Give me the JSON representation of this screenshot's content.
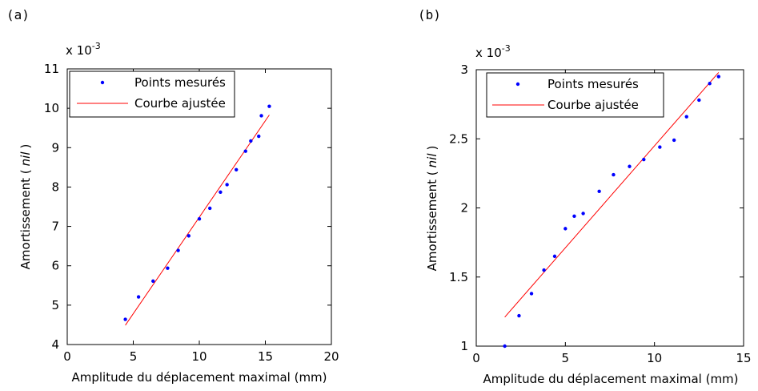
{
  "chart_data": [
    {
      "type": "scatter",
      "panel_label": "(a)",
      "multiplier": "x 10",
      "multiplier_exp": "-3",
      "xlabel": "Amplitude du déplacement maximal (mm)",
      "ylabel_prefix": "Amortissement (",
      "ylabel_italic": "nil",
      "ylabel_suffix": ")",
      "xlim": [
        0,
        20
      ],
      "ylim": [
        4,
        11
      ],
      "xticks": [
        0,
        5,
        10,
        15,
        20
      ],
      "yticks": [
        4,
        5,
        6,
        7,
        8,
        9,
        10,
        11
      ],
      "legend_position": "top-left",
      "series": [
        {
          "name": "Points mesurés",
          "kind": "points",
          "color": "#0000ff",
          "x": [
            4.4,
            5.4,
            6.5,
            7.6,
            8.4,
            9.2,
            10.0,
            10.8,
            11.6,
            12.1,
            12.8,
            13.5,
            13.9,
            14.5,
            14.7,
            15.3
          ],
          "y": [
            4.64,
            5.21,
            5.61,
            5.94,
            6.39,
            6.76,
            7.19,
            7.46,
            7.87,
            8.06,
            8.44,
            8.91,
            9.17,
            9.29,
            9.81,
            10.05
          ]
        },
        {
          "name": "Courbe ajustée",
          "kind": "line",
          "color": "#ff0000",
          "x": [
            4.4,
            15.3
          ],
          "y": [
            4.49,
            9.83
          ]
        }
      ]
    },
    {
      "type": "scatter",
      "panel_label": "(b)",
      "multiplier": "x 10",
      "multiplier_exp": "-3",
      "xlabel": "Amplitude du déplacement maximal (mm)",
      "ylabel_prefix": "Amortissement (",
      "ylabel_italic": "nil",
      "ylabel_suffix": ")",
      "xlim": [
        0,
        15
      ],
      "ylim": [
        1,
        3
      ],
      "xticks": [
        0,
        5,
        10,
        15
      ],
      "yticks": [
        1,
        1.5,
        2,
        2.5,
        3
      ],
      "legend_position": "top-left",
      "series": [
        {
          "name": "Points mesurés",
          "kind": "points",
          "color": "#0000ff",
          "x": [
            1.6,
            2.4,
            3.1,
            3.8,
            4.4,
            5.0,
            5.5,
            6.0,
            6.9,
            7.7,
            8.6,
            9.4,
            10.3,
            11.1,
            11.8,
            12.5,
            13.1,
            13.6
          ],
          "y": [
            1.0,
            1.22,
            1.38,
            1.55,
            1.65,
            1.85,
            1.94,
            1.96,
            2.12,
            2.24,
            2.3,
            2.35,
            2.44,
            2.49,
            2.66,
            2.78,
            2.9,
            2.95
          ]
        },
        {
          "name": "Courbe ajustée",
          "kind": "line",
          "color": "#ff0000",
          "x": [
            1.6,
            13.6
          ],
          "y": [
            1.21,
            2.98
          ]
        }
      ]
    }
  ]
}
